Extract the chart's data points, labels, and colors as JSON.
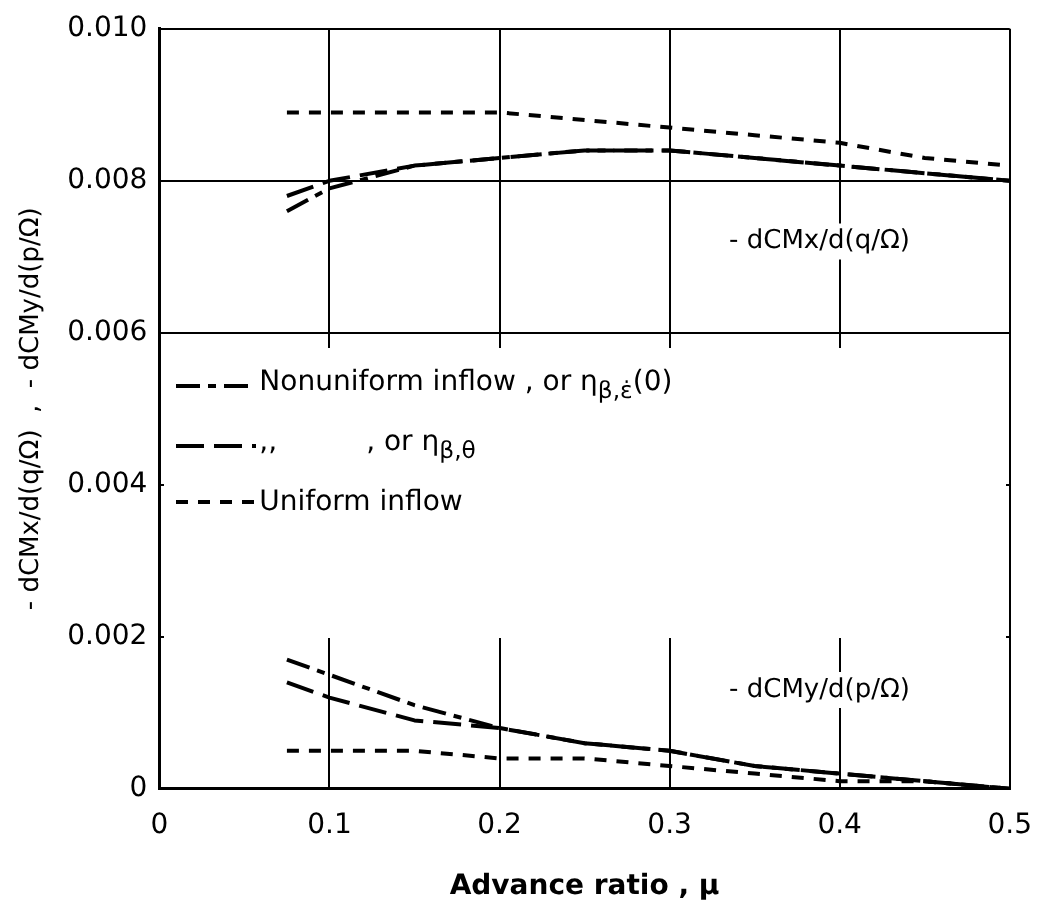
{
  "chart_data": {
    "type": "line",
    "xlabel": "Advance ratio , μ",
    "ylabel": "- dCMx/d(q/Ω)  ,  - dCMy/d(p/Ω)",
    "x": [
      0.075,
      0.1,
      0.15,
      0.2,
      0.25,
      0.3,
      0.35,
      0.4,
      0.45,
      0.5
    ],
    "series": [
      {
        "name": "Nonuniform inflow , or η$_{β,ε̇}$(0)",
        "color": "#000000",
        "line_style": "dashdot",
        "values": [
          0.0076,
          0.0079,
          0.0082,
          0.0083,
          0.0084,
          0.0084,
          0.0083,
          0.0082,
          0.0081,
          0.008
        ]
      },
      {
        "name": ",,          , or η$_{β,θ}$",
        "color": "#000000",
        "line_style": "dashed",
        "values": [
          0.0078,
          0.008,
          0.0082,
          0.0083,
          0.0084,
          0.0084,
          0.0083,
          0.0082,
          0.0081,
          0.008
        ]
      },
      {
        "name": "Uniform inflow",
        "color": "#000000",
        "line_style": "dotted",
        "values": [
          0.0089,
          0.0089,
          0.0089,
          0.0089,
          0.0088,
          0.0087,
          0.0086,
          0.0085,
          0.0083,
          0.0082
        ]
      },
      {
        "color": "#000000",
        "line_style": "dashdot",
        "values": [
          0.0017,
          0.0015,
          0.0011,
          0.0008,
          0.0006,
          0.0005,
          0.0003,
          0.0002,
          0.0001,
          0
        ]
      },
      {
        "color": "#000000",
        "line_style": "dashed",
        "values": [
          0.0014,
          0.0012,
          0.0009,
          0.0008,
          0.0006,
          0.0005,
          0.0003,
          0.0002,
          0.0001,
          0
        ]
      },
      {
        "color": "#000000",
        "line_style": "dotted",
        "values": [
          0.0005,
          0.0005,
          0.0005,
          0.0004,
          0.0004,
          0.0003,
          0.0002,
          0.0001,
          0.0001,
          0
        ]
      }
    ],
    "xlim": [
      0,
      0.5
    ],
    "xticks": [
      0,
      0.1,
      0.2,
      0.3,
      0.4,
      0.5
    ],
    "ylim": [
      0,
      0.01
    ],
    "yticks": [
      0,
      {
        "value": 0.002,
        "label": "0.002"
      },
      {
        "value": 0.004,
        "label": "0.004"
      },
      {
        "value": 0.006,
        "label": "0.006"
      },
      {
        "value": 0.008,
        "label": "0.008"
      },
      {
        "value": 0.01,
        "label": "0.010"
      }
    ],
    "annotations": [
      "- dCMx/d(q/Ω)",
      "- dCMy/d(p/Ω)"
    ],
    "grid": true,
    "legend": "left",
    "marker": "none"
  }
}
